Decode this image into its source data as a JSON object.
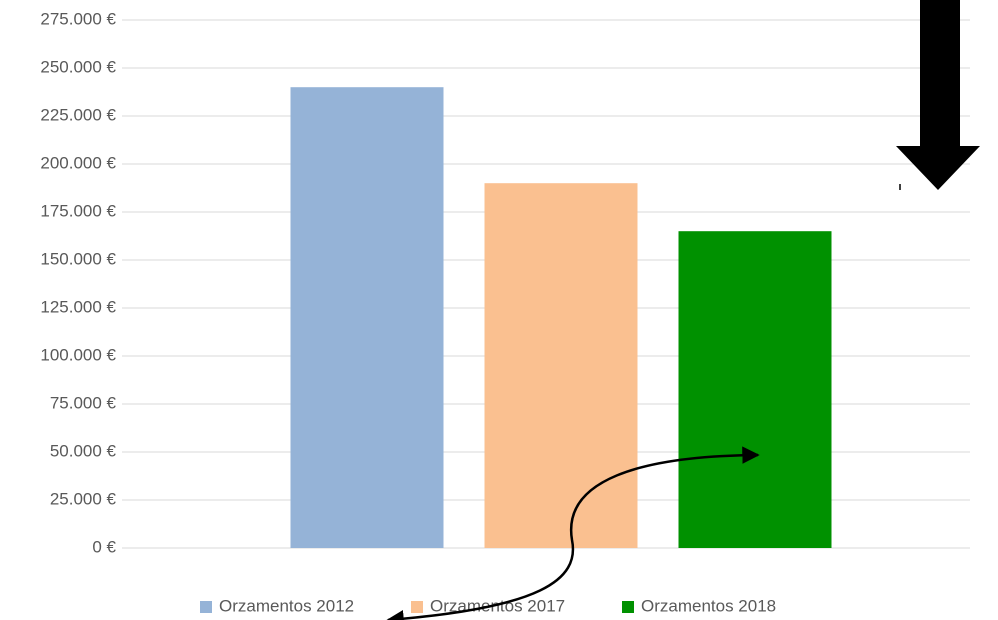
{
  "chart_data": {
    "type": "bar",
    "categories": [
      null
    ],
    "series": [
      {
        "name": "Orzamentos 2012",
        "color": "#95b3d7",
        "values": [
          240000
        ]
      },
      {
        "name": "Orzamentos 2017",
        "color": "#fac090",
        "values": [
          190000
        ]
      },
      {
        "name": "Orzamentos 2018",
        "color": "#009100",
        "values": [
          165000
        ]
      }
    ],
    "ylim": [
      0,
      275000
    ],
    "yticks": [
      {
        "value": 0,
        "label": "0 €"
      },
      {
        "value": 25000,
        "label": "25.000 €"
      },
      {
        "value": 50000,
        "label": "50.000 €"
      },
      {
        "value": 75000,
        "label": "75.000 €"
      },
      {
        "value": 100000,
        "label": "100.000 €"
      },
      {
        "value": 125000,
        "label": "125.000 €"
      },
      {
        "value": 150000,
        "label": "150.000 €"
      },
      {
        "value": 175000,
        "label": "175.000 €"
      },
      {
        "value": 200000,
        "label": "200.000 €"
      },
      {
        "value": 225000,
        "label": "225.000 €"
      },
      {
        "value": 250000,
        "label": "250.000 €"
      },
      {
        "value": 275000,
        "label": "275.000 €"
      }
    ],
    "grid": true,
    "legend": "bottom"
  }
}
